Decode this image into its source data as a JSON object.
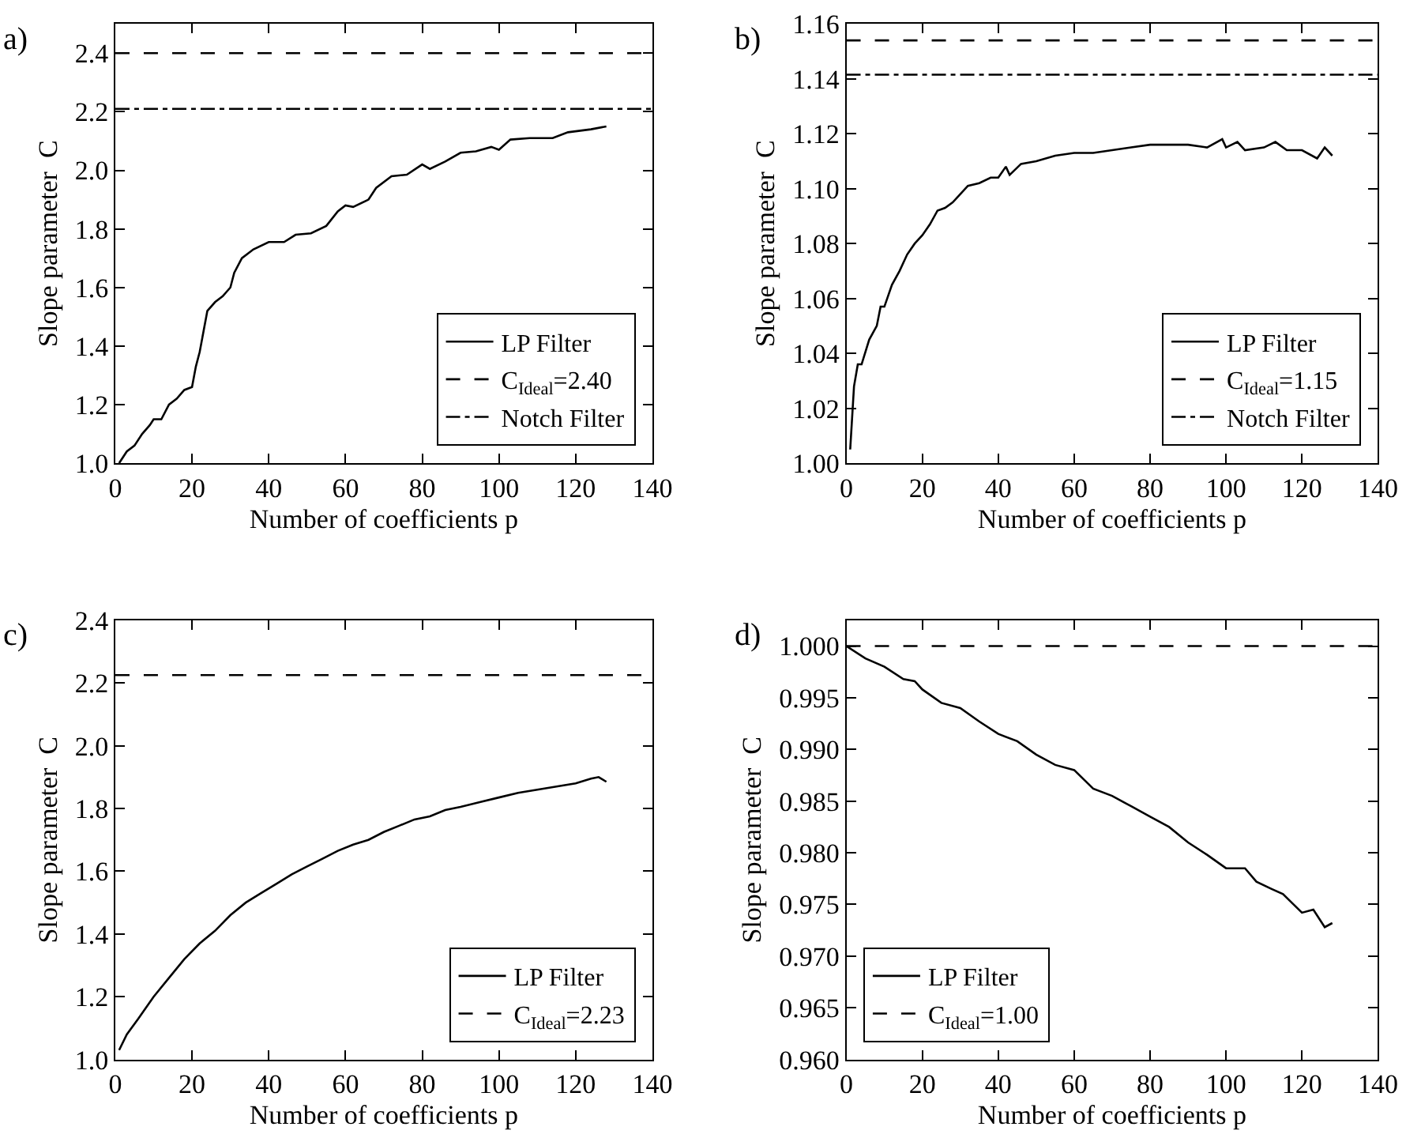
{
  "chart_data": [
    {
      "type": "line",
      "title": "a)",
      "xlabel": "Number of coefficients p",
      "ylabel": "Slope parameter  C",
      "legend": "bottom right",
      "line_style": "solid",
      "xlim": [
        0,
        140
      ],
      "xticks": [
        0,
        20,
        40,
        60,
        80,
        100,
        120,
        140
      ],
      "ylim": [
        1.0,
        2.5
      ],
      "yticks": [
        {
          "value": 1.0,
          "label": "1.0"
        },
        {
          "value": 1.2,
          "label": "1.2"
        },
        {
          "value": 1.4,
          "label": "1.4"
        },
        {
          "value": 1.6,
          "label": "1.6"
        },
        {
          "value": 1.8,
          "label": "1.8"
        },
        {
          "value": 2.0,
          "label": "2.0"
        },
        {
          "value": 2.2,
          "label": "2.2"
        },
        {
          "value": 2.4,
          "label": "2.4"
        }
      ],
      "series": [
        {
          "name": "LP Filter",
          "color": "#000000",
          "x": [
            1,
            3,
            5,
            7,
            9,
            10,
            12,
            14,
            16,
            18,
            20,
            21,
            22,
            23,
            24,
            26,
            28,
            30,
            31,
            33,
            36,
            40,
            44,
            47,
            51,
            55,
            58,
            60,
            62,
            66,
            68,
            72,
            76,
            80,
            82,
            86,
            90,
            94,
            98,
            100,
            103,
            108,
            114,
            118,
            124,
            128
          ],
          "values": [
            1.0,
            1.04,
            1.06,
            1.1,
            1.13,
            1.15,
            1.15,
            1.2,
            1.22,
            1.25,
            1.26,
            1.33,
            1.38,
            1.45,
            1.52,
            1.55,
            1.57,
            1.6,
            1.65,
            1.7,
            1.73,
            1.755,
            1.755,
            1.78,
            1.785,
            1.81,
            1.86,
            1.88,
            1.875,
            1.9,
            1.94,
            1.98,
            1.985,
            2.02,
            2.005,
            2.03,
            2.06,
            2.065,
            2.08,
            2.07,
            2.105,
            2.11,
            2.11,
            2.13,
            2.14,
            2.15
          ]
        }
      ],
      "ref_lines": [
        {
          "axis": "y",
          "value": 2.4,
          "label": "C$_{Ideal}$=2.40",
          "color": "#000000",
          "line_style": "dashed"
        },
        {
          "axis": "y",
          "value": 2.21,
          "label": "Notch Filter",
          "color": "#000000",
          "line_style": "dashdot"
        }
      ]
    },
    {
      "type": "line",
      "title": "b)",
      "xlabel": "Number of coefficients p",
      "ylabel": "Slope parameter  C",
      "legend": "bottom right",
      "line_style": "solid",
      "xlim": [
        0,
        140
      ],
      "xticks": [
        0,
        20,
        40,
        60,
        80,
        100,
        120,
        140
      ],
      "ylim": [
        1.0,
        1.16
      ],
      "yticks": [
        {
          "value": 1.0,
          "label": "1.00"
        },
        {
          "value": 1.02,
          "label": "1.02"
        },
        {
          "value": 1.04,
          "label": "1.04"
        },
        {
          "value": 1.06,
          "label": "1.06"
        },
        {
          "value": 1.08,
          "label": "1.08"
        },
        {
          "value": 1.1,
          "label": "1.10"
        },
        {
          "value": 1.12,
          "label": "1.12"
        },
        {
          "value": 1.14,
          "label": "1.14"
        },
        {
          "value": 1.16,
          "label": "1.16"
        }
      ],
      "series": [
        {
          "name": "LP Filter",
          "color": "#000000",
          "x": [
            1,
            2,
            3,
            4,
            6,
            8,
            9,
            10,
            12,
            14,
            16,
            18,
            20,
            22,
            24,
            26,
            28,
            30,
            32,
            35,
            38,
            40,
            42,
            43,
            46,
            50,
            55,
            60,
            65,
            70,
            75,
            80,
            85,
            90,
            95,
            99,
            100,
            103,
            105,
            110,
            113,
            116,
            120,
            124,
            126,
            128
          ],
          "values": [
            1.005,
            1.028,
            1.036,
            1.036,
            1.045,
            1.05,
            1.057,
            1.057,
            1.065,
            1.07,
            1.076,
            1.08,
            1.083,
            1.087,
            1.092,
            1.093,
            1.095,
            1.098,
            1.101,
            1.102,
            1.104,
            1.104,
            1.108,
            1.105,
            1.109,
            1.11,
            1.112,
            1.113,
            1.113,
            1.114,
            1.115,
            1.116,
            1.116,
            1.116,
            1.115,
            1.118,
            1.115,
            1.117,
            1.114,
            1.115,
            1.117,
            1.114,
            1.114,
            1.111,
            1.115,
            1.112
          ]
        }
      ],
      "ref_lines": [
        {
          "axis": "y",
          "value": 1.154,
          "label": "C$_{Ideal}$=1.15",
          "color": "#000000",
          "line_style": "dashed"
        },
        {
          "axis": "y",
          "value": 1.1415,
          "label": "Notch Filter",
          "color": "#000000",
          "line_style": "dashdot"
        }
      ]
    },
    {
      "type": "line",
      "title": "c)",
      "xlabel": "Number of coefficients p",
      "ylabel": "Slope parameter  C",
      "legend": "bottom right",
      "line_style": "solid",
      "xlim": [
        0,
        140
      ],
      "xticks": [
        0,
        20,
        40,
        60,
        80,
        100,
        120,
        140
      ],
      "ylim": [
        1.0,
        2.4
      ],
      "yticks": [
        {
          "value": 1.0,
          "label": "1.0"
        },
        {
          "value": 1.2,
          "label": "1.2"
        },
        {
          "value": 1.4,
          "label": "1.4"
        },
        {
          "value": 1.6,
          "label": "1.6"
        },
        {
          "value": 1.8,
          "label": "1.8"
        },
        {
          "value": 2.0,
          "label": "2.0"
        },
        {
          "value": 2.2,
          "label": "2.2"
        },
        {
          "value": 2.4,
          "label": "2.4"
        }
      ],
      "series": [
        {
          "name": "LP Filter",
          "color": "#000000",
          "x": [
            1,
            3,
            6,
            10,
            14,
            18,
            22,
            26,
            30,
            34,
            38,
            42,
            46,
            50,
            54,
            58,
            62,
            66,
            70,
            74,
            78,
            82,
            86,
            90,
            95,
            100,
            105,
            110,
            115,
            120,
            124,
            126,
            128
          ],
          "values": [
            1.03,
            1.08,
            1.13,
            1.2,
            1.26,
            1.32,
            1.37,
            1.41,
            1.46,
            1.5,
            1.53,
            1.56,
            1.59,
            1.615,
            1.64,
            1.665,
            1.685,
            1.7,
            1.725,
            1.745,
            1.765,
            1.775,
            1.795,
            1.805,
            1.82,
            1.835,
            1.85,
            1.86,
            1.87,
            1.88,
            1.895,
            1.9,
            1.885
          ]
        }
      ],
      "ref_lines": [
        {
          "axis": "y",
          "value": 2.225,
          "label": "C$_{Ideal}$=2.23",
          "color": "#000000",
          "line_style": "dashed"
        }
      ]
    },
    {
      "type": "line",
      "title": "d)",
      "xlabel": "Number of coefficients p",
      "ylabel": "Slope parameter  C",
      "legend": "bottom left",
      "line_style": "solid",
      "xlim": [
        0,
        140
      ],
      "xticks": [
        0,
        20,
        40,
        60,
        80,
        100,
        120,
        140
      ],
      "ylim": [
        0.96,
        1.0025
      ],
      "yticks": [
        {
          "value": 0.96,
          "label": "0.960"
        },
        {
          "value": 0.965,
          "label": "0.965"
        },
        {
          "value": 0.97,
          "label": "0.970"
        },
        {
          "value": 0.975,
          "label": "0.975"
        },
        {
          "value": 0.98,
          "label": "0.980"
        },
        {
          "value": 0.985,
          "label": "0.985"
        },
        {
          "value": 0.99,
          "label": "0.990"
        },
        {
          "value": 0.995,
          "label": "0.995"
        },
        {
          "value": 1.0,
          "label": "1.000"
        }
      ],
      "series": [
        {
          "name": "LP Filter",
          "color": "#000000",
          "x": [
            0,
            5,
            10,
            15,
            18,
            20,
            25,
            30,
            35,
            40,
            45,
            50,
            55,
            60,
            65,
            70,
            75,
            80,
            85,
            90,
            95,
            100,
            105,
            108,
            112,
            115,
            120,
            123,
            126,
            128
          ],
          "values": [
            1.0,
            0.9988,
            0.998,
            0.9968,
            0.9966,
            0.9958,
            0.9945,
            0.994,
            0.9927,
            0.9915,
            0.9908,
            0.9895,
            0.9885,
            0.988,
            0.9862,
            0.9855,
            0.9845,
            0.9835,
            0.9825,
            0.981,
            0.9798,
            0.9785,
            0.9785,
            0.9772,
            0.9765,
            0.976,
            0.9742,
            0.9745,
            0.9728,
            0.9732
          ]
        }
      ],
      "ref_lines": [
        {
          "axis": "y",
          "value": 1.0,
          "label": "C$_{Ideal}$=1.00",
          "color": "#000000",
          "line_style": "dashed"
        }
      ]
    }
  ]
}
